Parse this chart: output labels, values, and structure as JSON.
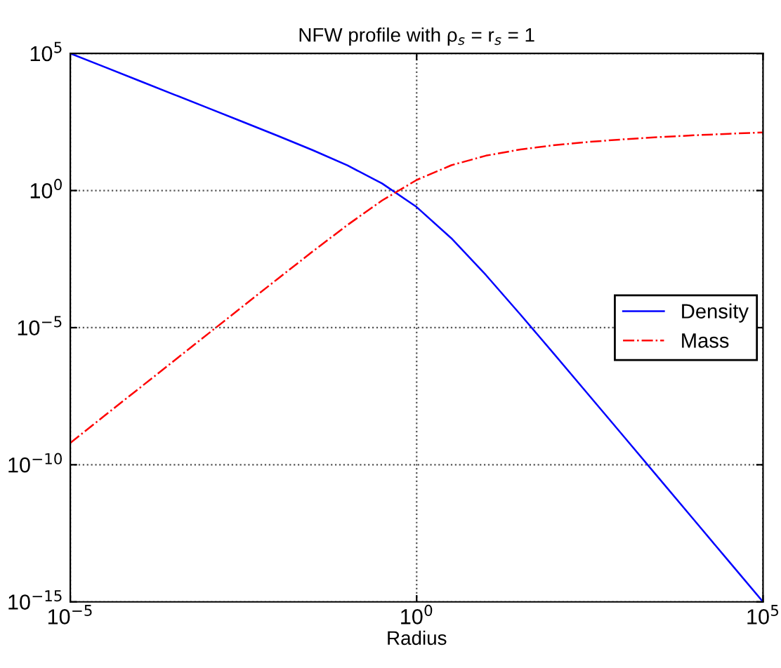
{
  "chart_data": {
    "type": "line",
    "title": "NFW profile with ρ$_{s}$ = r$_{s}$ = 1",
    "xlabel": "Radius",
    "log": "xy",
    "x": [
      1e-05,
      3.16e-05,
      0.0001,
      0.000316,
      0.001,
      0.00316,
      0.01,
      0.0316,
      0.1,
      0.316,
      1,
      3.16,
      10,
      31.6,
      100,
      316,
      1000,
      3162,
      10000.0,
      31600.0,
      100000.0
    ],
    "series": [
      {
        "name": "Density",
        "color": "#0000ff",
        "line_style": "solid",
        "values": [
          100000.0,
          31600.0,
          10000.0,
          3160,
          998,
          314,
          98,
          29.7,
          8.26,
          1.82,
          0.25,
          0.0183,
          0.00083,
          2.97e-05,
          9.8e-07,
          3.14e-08,
          9.98e-10,
          3.16e-11,
          1e-12,
          3.16e-14,
          1e-15
        ]
      },
      {
        "name": "Mass",
        "color": "#ff0000",
        "line_style": "dashdot",
        "values": [
          6.28e-10,
          6.28e-09,
          6.28e-08,
          6.28e-07,
          6.27e-06,
          6.26e-05,
          0.00062,
          0.00603,
          0.0553,
          0.433,
          2.43,
          8.37,
          18.7,
          31.6,
          45.6,
          59.8,
          74.3,
          88.7,
          103.2,
          117.6,
          132.1
        ]
      }
    ],
    "xlim": [
      1e-05,
      100000.0
    ],
    "ylim": [
      1e-15,
      100000.0
    ],
    "xticks": [
      {
        "value": 1e-05,
        "label": "10$^{−5}$"
      },
      {
        "value": 1,
        "label": "10$^{0}$"
      },
      {
        "value": 100000.0,
        "label": "10$^{5}$"
      }
    ],
    "yticks": [
      {
        "value": 1e-15,
        "label": "10$^{−15}$"
      },
      {
        "value": 1e-10,
        "label": "10$^{−10}$"
      },
      {
        "value": 1e-05,
        "label": "10$^{−5}$"
      },
      {
        "value": 1,
        "label": "10$^{0}$"
      },
      {
        "value": 100000.0,
        "label": "10$^{5}$"
      }
    ],
    "grid": true,
    "legend": "right"
  }
}
